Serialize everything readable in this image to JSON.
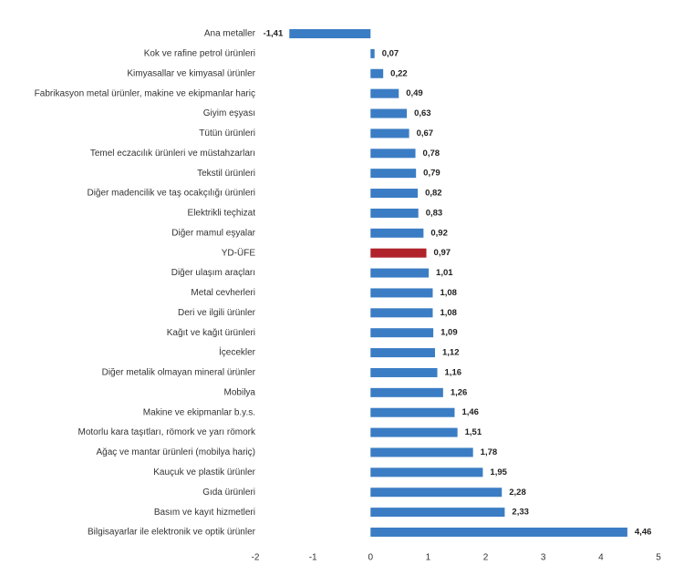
{
  "chart_data": {
    "type": "bar",
    "orientation": "horizontal",
    "categories": [
      "Ana metaller",
      "Kok ve rafine petrol ürünleri",
      "Kimyasallar ve kimyasal ürünler",
      "Fabrikasyon metal ürünler, makine ve ekipmanlar hariç",
      "Giyim eşyası",
      "Tütün ürünleri",
      "Temel eczacılık ürünleri ve müstahzarları",
      "Tekstil ürünleri",
      "Diğer madencilik ve taş ocakçılığı ürünleri",
      "Elektrikli teçhizat",
      "Diğer mamul eşyalar",
      "YD-ÜFE",
      "Diğer ulaşım araçları",
      "Metal cevherleri",
      "Deri ve ilgili ürünler",
      "Kağıt ve kağıt ürünleri",
      "İçecekler",
      "Diğer metalik olmayan mineral ürünler",
      "Mobilya",
      "Makine ve ekipmanlar b.y.s.",
      "Motorlu kara taşıtları, römork ve yarı römork",
      "Ağaç ve mantar ürünleri (mobilya hariç)",
      "Kauçuk ve plastik ürünler",
      "Gıda ürünleri",
      "Basım ve kayıt hizmetleri",
      "Bilgisayarlar ile elektronik ve optik ürünler"
    ],
    "values": [
      -1.41,
      0.07,
      0.22,
      0.49,
      0.63,
      0.67,
      0.78,
      0.79,
      0.82,
      0.83,
      0.92,
      0.97,
      1.01,
      1.08,
      1.08,
      1.09,
      1.12,
      1.16,
      1.26,
      1.46,
      1.51,
      1.78,
      1.95,
      2.28,
      2.33,
      4.46
    ],
    "value_labels": [
      "-1,41",
      "0,07",
      "0,22",
      "0,49",
      "0,63",
      "0,67",
      "0,78",
      "0,79",
      "0,82",
      "0,83",
      "0,92",
      "0,97",
      "1,01",
      "1,08",
      "1,08",
      "1,09",
      "1,12",
      "1,16",
      "1,26",
      "1,46",
      "1,51",
      "1,78",
      "1,95",
      "2,28",
      "2,33",
      "4,46"
    ],
    "colors": [
      "#3b7dc4",
      "#3b7dc4",
      "#3b7dc4",
      "#3b7dc4",
      "#3b7dc4",
      "#3b7dc4",
      "#3b7dc4",
      "#3b7dc4",
      "#3b7dc4",
      "#3b7dc4",
      "#3b7dc4",
      "#b0232a",
      "#3b7dc4",
      "#3b7dc4",
      "#3b7dc4",
      "#3b7dc4",
      "#3b7dc4",
      "#3b7dc4",
      "#3b7dc4",
      "#3b7dc4",
      "#3b7dc4",
      "#3b7dc4",
      "#3b7dc4",
      "#3b7dc4",
      "#3b7dc4",
      "#3b7dc4"
    ],
    "xlim": [
      -2,
      5
    ],
    "xticks": [
      -2,
      -1,
      0,
      1,
      2,
      3,
      4,
      5
    ],
    "grid": false
  }
}
